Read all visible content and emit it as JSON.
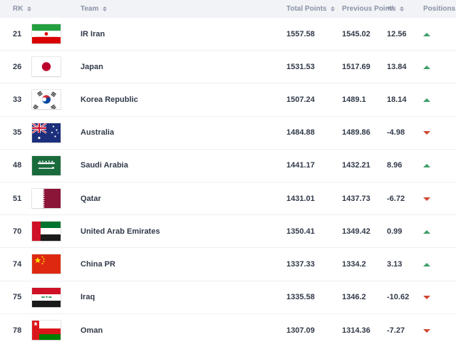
{
  "table": {
    "columns": [
      {
        "key": "rank",
        "label": "RK",
        "sortable": true
      },
      {
        "key": "team",
        "label": "Team",
        "sortable": true
      },
      {
        "key": "total",
        "label": "Total Points",
        "sortable": true
      },
      {
        "key": "previous",
        "label": "Previous Points",
        "sortable": false
      },
      {
        "key": "delta",
        "label": "+/-",
        "sortable": true
      },
      {
        "key": "positions",
        "label": "Positions",
        "sortable": false
      }
    ],
    "rows": [
      {
        "rank": "21",
        "team": "IR Iran",
        "flag": "iran",
        "total": "1557.58",
        "previous": "1545.02",
        "delta": "12.56",
        "direction": "up"
      },
      {
        "rank": "26",
        "team": "Japan",
        "flag": "japan",
        "total": "1531.53",
        "previous": "1517.69",
        "delta": "13.84",
        "direction": "up"
      },
      {
        "rank": "33",
        "team": "Korea Republic",
        "flag": "korea",
        "total": "1507.24",
        "previous": "1489.1",
        "delta": "18.14",
        "direction": "up"
      },
      {
        "rank": "35",
        "team": "Australia",
        "flag": "australia",
        "total": "1484.88",
        "previous": "1489.86",
        "delta": "-4.98",
        "direction": "down"
      },
      {
        "rank": "48",
        "team": "Saudi Arabia",
        "flag": "saudi-arabia",
        "total": "1441.17",
        "previous": "1432.21",
        "delta": "8.96",
        "direction": "up"
      },
      {
        "rank": "51",
        "team": "Qatar",
        "flag": "qatar",
        "total": "1431.01",
        "previous": "1437.73",
        "delta": "-6.72",
        "direction": "down"
      },
      {
        "rank": "70",
        "team": "United Arab Emirates",
        "flag": "uae",
        "total": "1350.41",
        "previous": "1349.42",
        "delta": "0.99",
        "direction": "up"
      },
      {
        "rank": "74",
        "team": "China PR",
        "flag": "china",
        "total": "1337.33",
        "previous": "1334.2",
        "delta": "3.13",
        "direction": "up"
      },
      {
        "rank": "75",
        "team": "Iraq",
        "flag": "iraq",
        "total": "1335.58",
        "previous": "1346.2",
        "delta": "-10.62",
        "direction": "down"
      },
      {
        "rank": "78",
        "team": "Oman",
        "flag": "oman",
        "total": "1307.09",
        "previous": "1314.36",
        "delta": "-7.27",
        "direction": "down"
      }
    ]
  },
  "colors": {
    "up": "#3c9e68",
    "down": "#cf4632",
    "header_bg": "#f2f3f6",
    "header_text": "#8a92a6",
    "body_text": "#323a49"
  }
}
